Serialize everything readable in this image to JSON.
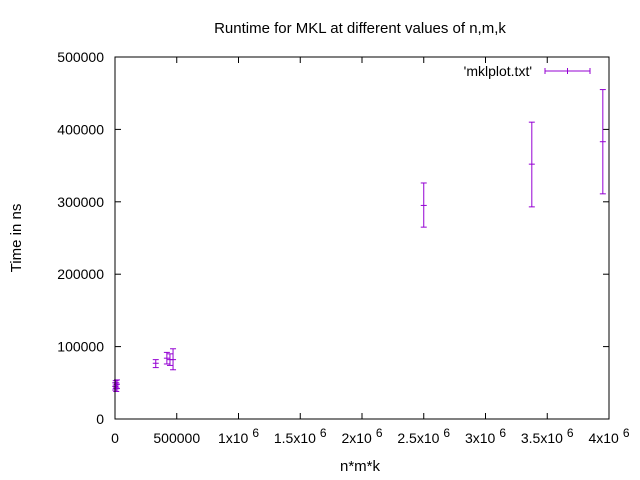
{
  "chart_data": {
    "type": "scatter",
    "title": "Runtime for MKL at different values of n,m,k",
    "xlabel": "n*m*k",
    "ylabel": "Time in ns",
    "xlim": [
      0,
      4000000
    ],
    "ylim": [
      0,
      500000
    ],
    "x_ticks": [
      {
        "value": 0,
        "label": "0",
        "sup": ""
      },
      {
        "value": 500000,
        "label": "500000",
        "sup": ""
      },
      {
        "value": 1000000,
        "label": "1x10",
        "sup": "6"
      },
      {
        "value": 1500000,
        "label": "1.5x10",
        "sup": "6"
      },
      {
        "value": 2000000,
        "label": "2x10",
        "sup": "6"
      },
      {
        "value": 2500000,
        "label": "2.5x10",
        "sup": "6"
      },
      {
        "value": 3000000,
        "label": "3x10",
        "sup": "6"
      },
      {
        "value": 3500000,
        "label": "3.5x10",
        "sup": "6"
      },
      {
        "value": 4000000,
        "label": "4x10",
        "sup": "6"
      }
    ],
    "y_ticks": [
      {
        "value": 0,
        "label": "0"
      },
      {
        "value": 100000,
        "label": "100000"
      },
      {
        "value": 200000,
        "label": "200000"
      },
      {
        "value": 300000,
        "label": "300000"
      },
      {
        "value": 400000,
        "label": "400000"
      },
      {
        "value": 500000,
        "label": "500000"
      }
    ],
    "grid": false,
    "legend_position": "top-right",
    "series": [
      {
        "name": "'mklplot.txt'",
        "color": "#9400d3",
        "style": "y-errorbars",
        "points": [
          {
            "x": 2000,
            "y": 45000,
            "ylow": 40000,
            "yhigh": 50000
          },
          {
            "x": 6000,
            "y": 47000,
            "ylow": 42000,
            "yhigh": 53000
          },
          {
            "x": 10000,
            "y": 44000,
            "ylow": 38000,
            "yhigh": 50000
          },
          {
            "x": 16000,
            "y": 48000,
            "ylow": 42000,
            "yhigh": 54000
          },
          {
            "x": 330000,
            "y": 77000,
            "ylow": 71000,
            "yhigh": 82000
          },
          {
            "x": 420000,
            "y": 84000,
            "ylow": 76000,
            "yhigh": 92000
          },
          {
            "x": 445000,
            "y": 82000,
            "ylow": 74000,
            "yhigh": 90000
          },
          {
            "x": 470000,
            "y": 82000,
            "ylow": 68000,
            "yhigh": 97000
          },
          {
            "x": 2500000,
            "y": 295000,
            "ylow": 265000,
            "yhigh": 326000
          },
          {
            "x": 3375000,
            "y": 352000,
            "ylow": 293000,
            "yhigh": 410000
          },
          {
            "x": 3950000,
            "y": 383000,
            "ylow": 311000,
            "yhigh": 455000
          }
        ]
      }
    ]
  }
}
